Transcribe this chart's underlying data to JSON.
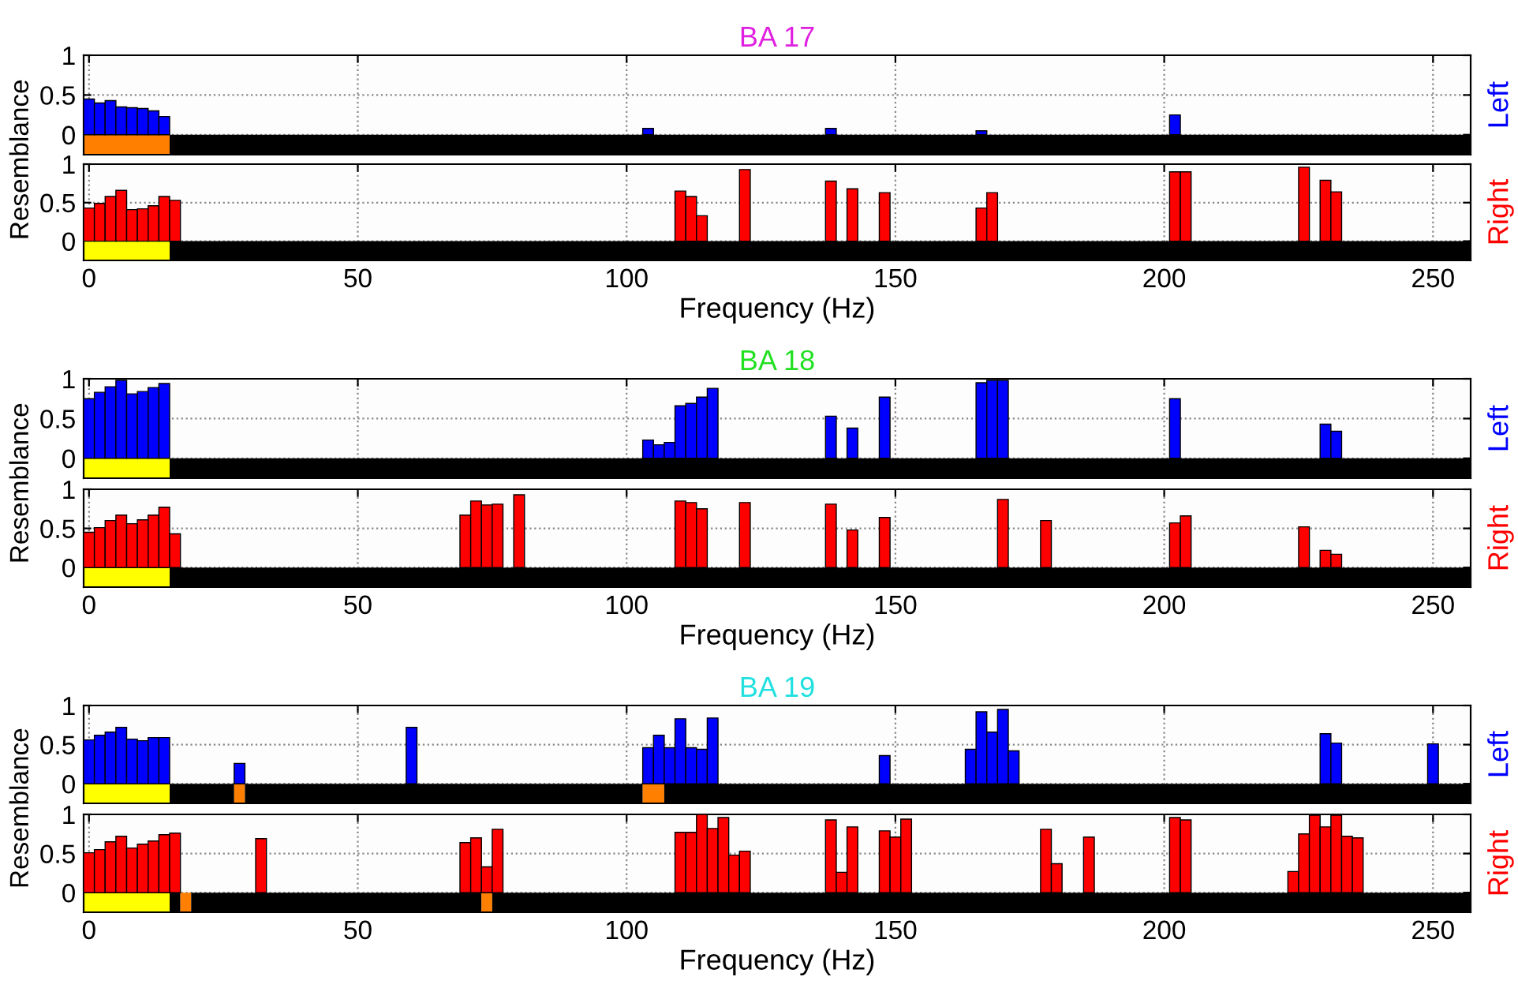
{
  "chart_data": [
    {
      "type": "bar",
      "title": "BA 17",
      "ylabel": "Resemblance",
      "y2label": "Left",
      "color": "#0000ff",
      "tick_labels": "y",
      "grid": true,
      "xlim": [
        -1,
        257
      ],
      "ylim": [
        -0.25,
        1
      ],
      "xticks": [
        0,
        50,
        100,
        150,
        200,
        250
      ],
      "yticks": [
        0,
        0.5,
        1
      ],
      "x": [
        0,
        2,
        4,
        6,
        8,
        10,
        12,
        14,
        104,
        138,
        166,
        202
      ],
      "values": [
        0.45,
        0.4,
        0.43,
        0.35,
        0.34,
        0.33,
        0.3,
        0.23,
        0.08,
        0.08,
        0.05,
        0.25
      ],
      "bands": [
        {
          "axis": "x",
          "from": -1,
          "to": 15,
          "color": "#ff8000"
        },
        {
          "axis": "x",
          "from": 15,
          "to": 257,
          "color": "#000000"
        }
      ]
    },
    {
      "type": "bar",
      "xlabel": "Frequency (Hz)",
      "y2label": "Right",
      "color": "#ff0000",
      "grid": true,
      "xlim": [
        -1,
        257
      ],
      "ylim": [
        -0.25,
        1
      ],
      "xticks": [
        0,
        50,
        100,
        150,
        200,
        250
      ],
      "yticks": [
        0,
        0.5,
        1
      ],
      "x": [
        0,
        2,
        4,
        6,
        8,
        10,
        12,
        14,
        16,
        110,
        112,
        114,
        122,
        138,
        142,
        148,
        166,
        168,
        202,
        204,
        226,
        230,
        232
      ],
      "values": [
        0.43,
        0.49,
        0.58,
        0.66,
        0.41,
        0.42,
        0.46,
        0.58,
        0.53,
        0.65,
        0.58,
        0.33,
        0.93,
        0.78,
        0.68,
        0.63,
        0.43,
        0.63,
        0.9,
        0.9,
        0.96,
        0.79,
        0.64
      ],
      "bands": [
        {
          "axis": "x",
          "from": -1,
          "to": 15,
          "color": "#ffff00"
        },
        {
          "axis": "x",
          "from": 15,
          "to": 257,
          "color": "#000000"
        }
      ]
    },
    {
      "type": "bar",
      "title": "BA 18",
      "ylabel": "Resemblance",
      "y2label": "Left",
      "color": "#0000ff",
      "tick_labels": "y",
      "grid": true,
      "xlim": [
        -1,
        257
      ],
      "ylim": [
        -0.25,
        1
      ],
      "xticks": [
        0,
        50,
        100,
        150,
        200,
        250
      ],
      "yticks": [
        0,
        0.5,
        1
      ],
      "x": [
        0,
        2,
        4,
        6,
        8,
        10,
        12,
        14,
        104,
        106,
        108,
        110,
        112,
        114,
        116,
        138,
        142,
        148,
        166,
        168,
        170,
        202,
        230,
        232
      ],
      "values": [
        0.75,
        0.83,
        0.9,
        0.98,
        0.81,
        0.84,
        0.89,
        0.94,
        0.23,
        0.17,
        0.2,
        0.66,
        0.69,
        0.77,
        0.88,
        0.53,
        0.38,
        0.77,
        0.95,
        0.98,
        0.98,
        0.75,
        0.43,
        0.34
      ],
      "bands": [
        {
          "axis": "x",
          "from": -1,
          "to": 15,
          "color": "#ffff00"
        },
        {
          "axis": "x",
          "from": 15,
          "to": 257,
          "color": "#000000"
        }
      ]
    },
    {
      "type": "bar",
      "xlabel": "Frequency (Hz)",
      "y2label": "Right",
      "color": "#ff0000",
      "grid": true,
      "xlim": [
        -1,
        257
      ],
      "ylim": [
        -0.25,
        1
      ],
      "xticks": [
        0,
        50,
        100,
        150,
        200,
        250
      ],
      "yticks": [
        0,
        0.5,
        1
      ],
      "x": [
        0,
        2,
        4,
        6,
        8,
        10,
        12,
        14,
        16,
        70,
        72,
        74,
        76,
        80,
        110,
        112,
        114,
        122,
        138,
        142,
        148,
        170,
        178,
        202,
        204,
        226,
        230,
        232
      ],
      "values": [
        0.45,
        0.51,
        0.6,
        0.67,
        0.56,
        0.61,
        0.67,
        0.77,
        0.43,
        0.67,
        0.85,
        0.8,
        0.81,
        0.93,
        0.85,
        0.83,
        0.75,
        0.83,
        0.81,
        0.48,
        0.64,
        0.87,
        0.6,
        0.57,
        0.66,
        0.52,
        0.22,
        0.17
      ],
      "bands": [
        {
          "axis": "x",
          "from": -1,
          "to": 15,
          "color": "#ffff00"
        },
        {
          "axis": "x",
          "from": 15,
          "to": 257,
          "color": "#000000"
        }
      ]
    },
    {
      "type": "bar",
      "title": "BA 19",
      "ylabel": "Resemblance",
      "y2label": "Left",
      "color": "#0000ff",
      "tick_labels": "y",
      "grid": true,
      "xlim": [
        -1,
        257
      ],
      "ylim": [
        -0.25,
        1
      ],
      "xticks": [
        0,
        50,
        100,
        150,
        200,
        250
      ],
      "yticks": [
        0,
        0.5,
        1
      ],
      "x": [
        0,
        2,
        4,
        6,
        8,
        10,
        12,
        14,
        28,
        60,
        104,
        106,
        108,
        110,
        112,
        114,
        116,
        148,
        164,
        166,
        168,
        170,
        172,
        230,
        232,
        250
      ],
      "values": [
        0.56,
        0.62,
        0.66,
        0.72,
        0.57,
        0.55,
        0.59,
        0.59,
        0.26,
        0.72,
        0.46,
        0.62,
        0.46,
        0.83,
        0.46,
        0.44,
        0.84,
        0.36,
        0.44,
        0.92,
        0.66,
        0.95,
        0.42,
        0.64,
        0.52,
        0.51
      ],
      "bands": [
        {
          "axis": "x",
          "from": -1,
          "to": 15,
          "color": "#ffff00"
        },
        {
          "axis": "x",
          "from": 15,
          "to": 27,
          "color": "#000000"
        },
        {
          "axis": "x",
          "from": 27,
          "to": 29,
          "color": "#ff8000"
        },
        {
          "axis": "x",
          "from": 29,
          "to": 103,
          "color": "#000000"
        },
        {
          "axis": "x",
          "from": 103,
          "to": 107,
          "color": "#ff8000"
        },
        {
          "axis": "x",
          "from": 107,
          "to": 257,
          "color": "#000000"
        }
      ]
    },
    {
      "type": "bar",
      "xlabel": "Frequency (Hz)",
      "y2label": "Right",
      "color": "#ff0000",
      "grid": true,
      "xlim": [
        -1,
        257
      ],
      "ylim": [
        -0.25,
        1
      ],
      "xticks": [
        0,
        50,
        100,
        150,
        200,
        250
      ],
      "yticks": [
        0,
        0.5,
        1
      ],
      "x": [
        0,
        2,
        4,
        6,
        8,
        10,
        12,
        14,
        16,
        32,
        70,
        72,
        74,
        76,
        110,
        112,
        114,
        116,
        118,
        120,
        122,
        138,
        140,
        142,
        148,
        150,
        152,
        178,
        180,
        186,
        202,
        204,
        224,
        226,
        228,
        230,
        232,
        234,
        236
      ],
      "values": [
        0.51,
        0.55,
        0.65,
        0.72,
        0.57,
        0.62,
        0.66,
        0.74,
        0.76,
        0.69,
        0.64,
        0.7,
        0.33,
        0.81,
        0.77,
        0.77,
        1.0,
        0.82,
        0.96,
        0.48,
        0.53,
        0.93,
        0.26,
        0.84,
        0.79,
        0.71,
        0.94,
        0.81,
        0.37,
        0.71,
        0.96,
        0.93,
        0.27,
        0.75,
        0.99,
        0.84,
        0.99,
        0.72,
        0.7
      ],
      "bands": [
        {
          "axis": "x",
          "from": -1,
          "to": 15,
          "color": "#ffff00"
        },
        {
          "axis": "x",
          "from": 15,
          "to": 17,
          "color": "#000000"
        },
        {
          "axis": "x",
          "from": 17,
          "to": 19,
          "color": "#ff8000"
        },
        {
          "axis": "x",
          "from": 19,
          "to": 73,
          "color": "#000000"
        },
        {
          "axis": "x",
          "from": 73,
          "to": 75,
          "color": "#ff8000"
        },
        {
          "axis": "x",
          "from": 75,
          "to": 257,
          "color": "#000000"
        }
      ]
    }
  ]
}
